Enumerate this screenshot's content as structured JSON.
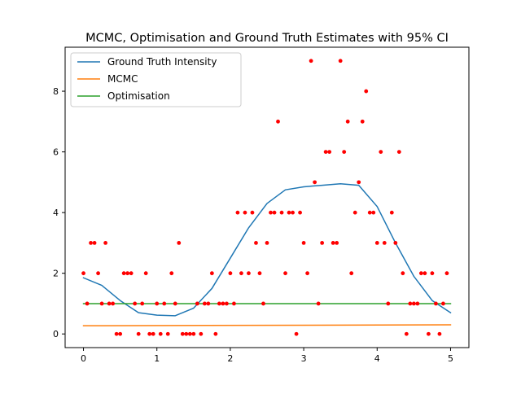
{
  "chart_data": {
    "type": "line",
    "title": "MCMC, Optimisation and Ground Truth Estimates with 95% CI",
    "xlabel": "",
    "ylabel": "",
    "xlim": [
      -0.25,
      5.25
    ],
    "ylim": [
      -0.45,
      9.45
    ],
    "xticks": [
      "0",
      "1",
      "2",
      "3",
      "4",
      "5"
    ],
    "xtick_values": [
      0,
      1,
      2,
      3,
      4,
      5
    ],
    "yticks": [
      "0",
      "2",
      "4",
      "6",
      "8"
    ],
    "ytick_values": [
      0,
      2,
      4,
      6,
      8
    ],
    "grid": false,
    "legend_position": "top-left",
    "series": [
      {
        "name": "Ground Truth Intensity",
        "color": "#1f77b4",
        "x": [
          0,
          0.25,
          0.5,
          0.75,
          1.0,
          1.25,
          1.5,
          1.75,
          2.0,
          2.25,
          2.5,
          2.75,
          3.0,
          3.25,
          3.5,
          3.75,
          4.0,
          4.25,
          4.5,
          4.75,
          5.0
        ],
        "y": [
          1.85,
          1.6,
          1.1,
          0.7,
          0.62,
          0.6,
          0.85,
          1.5,
          2.5,
          3.5,
          4.3,
          4.75,
          4.85,
          4.9,
          4.95,
          4.9,
          4.2,
          3.0,
          1.9,
          1.1,
          0.7
        ]
      },
      {
        "name": "MCMC",
        "color": "#ff7f0e",
        "x": [
          0,
          5
        ],
        "y": [
          0.27,
          0.3
        ]
      },
      {
        "name": "Optimisation",
        "color": "#2ca02c",
        "x": [
          0,
          5
        ],
        "y": [
          1.0,
          1.0
        ]
      }
    ],
    "points": {
      "color": "#ff0000",
      "values": [
        [
          0.0,
          2
        ],
        [
          0.05,
          1
        ],
        [
          0.1,
          3
        ],
        [
          0.15,
          3
        ],
        [
          0.2,
          2
        ],
        [
          0.25,
          1
        ],
        [
          0.3,
          3
        ],
        [
          0.35,
          1
        ],
        [
          0.4,
          1
        ],
        [
          0.45,
          0
        ],
        [
          0.5,
          0
        ],
        [
          0.55,
          2
        ],
        [
          0.6,
          2
        ],
        [
          0.65,
          2
        ],
        [
          0.7,
          1
        ],
        [
          0.75,
          0
        ],
        [
          0.8,
          1
        ],
        [
          0.85,
          2
        ],
        [
          0.9,
          0
        ],
        [
          0.95,
          0
        ],
        [
          1.0,
          1
        ],
        [
          1.05,
          0
        ],
        [
          1.1,
          1
        ],
        [
          1.15,
          0
        ],
        [
          1.2,
          2
        ],
        [
          1.25,
          1
        ],
        [
          1.3,
          3
        ],
        [
          1.35,
          0
        ],
        [
          1.4,
          0
        ],
        [
          1.45,
          0
        ],
        [
          1.5,
          0
        ],
        [
          1.55,
          1
        ],
        [
          1.6,
          0
        ],
        [
          1.65,
          1
        ],
        [
          1.7,
          1
        ],
        [
          1.75,
          2
        ],
        [
          1.8,
          0
        ],
        [
          1.85,
          1
        ],
        [
          1.9,
          1
        ],
        [
          1.95,
          1
        ],
        [
          2.0,
          2
        ],
        [
          2.05,
          1
        ],
        [
          2.1,
          4
        ],
        [
          2.15,
          2
        ],
        [
          2.2,
          4
        ],
        [
          2.25,
          2
        ],
        [
          2.3,
          4
        ],
        [
          2.35,
          3
        ],
        [
          2.4,
          2
        ],
        [
          2.45,
          1
        ],
        [
          2.5,
          3
        ],
        [
          2.55,
          4
        ],
        [
          2.6,
          4
        ],
        [
          2.65,
          7
        ],
        [
          2.7,
          4
        ],
        [
          2.75,
          2
        ],
        [
          2.8,
          4
        ],
        [
          2.85,
          4
        ],
        [
          2.9,
          0
        ],
        [
          2.95,
          4
        ],
        [
          3.0,
          3
        ],
        [
          3.05,
          2
        ],
        [
          3.1,
          9
        ],
        [
          3.15,
          5
        ],
        [
          3.2,
          1
        ],
        [
          3.25,
          3
        ],
        [
          3.3,
          6
        ],
        [
          3.35,
          6
        ],
        [
          3.4,
          3
        ],
        [
          3.45,
          3
        ],
        [
          3.5,
          9
        ],
        [
          3.55,
          6
        ],
        [
          3.6,
          7
        ],
        [
          3.65,
          2
        ],
        [
          3.7,
          4
        ],
        [
          3.75,
          5
        ],
        [
          3.8,
          7
        ],
        [
          3.85,
          8
        ],
        [
          3.9,
          4
        ],
        [
          3.95,
          4
        ],
        [
          4.0,
          3
        ],
        [
          4.05,
          6
        ],
        [
          4.1,
          3
        ],
        [
          4.15,
          1
        ],
        [
          4.2,
          4
        ],
        [
          4.25,
          3
        ],
        [
          4.3,
          6
        ],
        [
          4.35,
          2
        ],
        [
          4.4,
          0
        ],
        [
          4.45,
          1
        ],
        [
          4.5,
          1
        ],
        [
          4.55,
          1
        ],
        [
          4.6,
          2
        ],
        [
          4.65,
          2
        ],
        [
          4.7,
          0
        ],
        [
          4.75,
          2
        ],
        [
          4.8,
          1
        ],
        [
          4.85,
          0
        ],
        [
          4.9,
          1
        ],
        [
          4.95,
          2
        ]
      ]
    }
  }
}
